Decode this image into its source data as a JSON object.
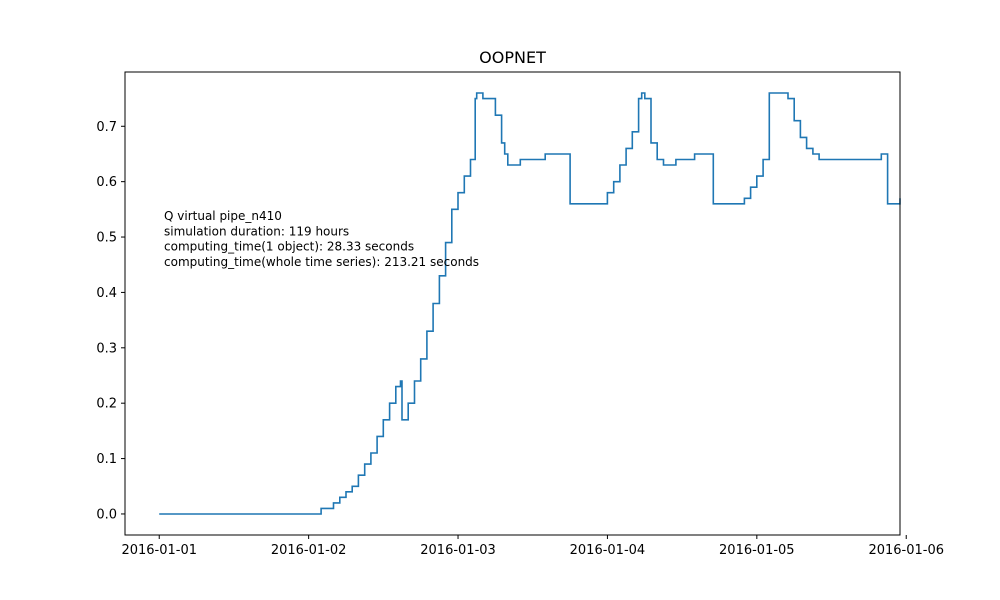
{
  "chart_data": {
    "type": "line",
    "title": "OOPNET",
    "xlabel": "",
    "ylabel": "",
    "x_is_datetime": true,
    "xlim": [
      "2016-01-00T18:30",
      "2016-01-05T23:00"
    ],
    "ylim": [
      -0.038,
      0.798
    ],
    "xticks": [
      "2016-01-01",
      "2016-01-02",
      "2016-01-03",
      "2016-01-04",
      "2016-01-05",
      "2016-01-06"
    ],
    "yticks": [
      0.0,
      0.1,
      0.2,
      0.3,
      0.4,
      0.5,
      0.6,
      0.7
    ],
    "ytick_labels": [
      "0.0",
      "0.1",
      "0.2",
      "0.3",
      "0.4",
      "0.5",
      "0.6",
      "0.7"
    ],
    "grid": false,
    "legend": "none",
    "line_color": "#1f77b4",
    "step": true,
    "annotations": [
      "Q virtual pipe_n410",
      "simulation duration:  119 hours",
      "computing_time(1 object):  28.33 seconds",
      "computing_time(whole time series):  213.21 seconds"
    ],
    "series": [
      {
        "x": [
          "2016-01-01T00:00",
          "2016-01-02T02:00",
          "2016-01-02T04:00",
          "2016-01-02T05:00",
          "2016-01-02T06:00",
          "2016-01-02T07:00",
          "2016-01-02T08:00",
          "2016-01-02T09:00",
          "2016-01-02T10:00",
          "2016-01-02T11:00",
          "2016-01-02T12:00",
          "2016-01-02T13:00",
          "2016-01-02T14:00",
          "2016-01-02T14:45",
          "2016-01-02T15:00",
          "2016-01-02T16:00",
          "2016-01-02T17:00",
          "2016-01-02T18:00",
          "2016-01-02T19:00",
          "2016-01-02T20:00",
          "2016-01-02T21:00",
          "2016-01-02T22:00",
          "2016-01-02T23:00",
          "2016-01-03T00:00",
          "2016-01-03T01:00",
          "2016-01-03T02:00",
          "2016-01-03T02:45",
          "2016-01-03T03:00",
          "2016-01-03T04:00",
          "2016-01-03T05:00",
          "2016-01-03T06:00",
          "2016-01-03T07:00",
          "2016-01-03T07:30",
          "2016-01-03T08:00",
          "2016-01-03T09:00",
          "2016-01-03T10:00",
          "2016-01-03T11:00",
          "2016-01-03T14:00",
          "2016-01-03T18:00",
          "2016-01-03T23:00",
          "2016-01-04T00:00",
          "2016-01-04T01:00",
          "2016-01-04T02:00",
          "2016-01-04T03:00",
          "2016-01-04T04:00",
          "2016-01-04T05:00",
          "2016-01-04T05:30",
          "2016-01-04T06:00",
          "2016-01-04T07:00",
          "2016-01-04T08:00",
          "2016-01-04T09:00",
          "2016-01-04T10:00",
          "2016-01-04T11:00",
          "2016-01-04T14:00",
          "2016-01-04T17:00",
          "2016-01-04T21:00",
          "2016-01-04T22:00",
          "2016-01-04T23:00",
          "2016-01-05T00:00",
          "2016-01-05T01:00",
          "2016-01-05T02:00",
          "2016-01-05T03:00",
          "2016-01-05T04:00",
          "2016-01-05T05:00",
          "2016-01-05T06:00",
          "2016-01-05T07:00",
          "2016-01-05T08:00",
          "2016-01-05T09:00",
          "2016-01-05T10:00",
          "2016-01-05T11:00",
          "2016-01-05T20:00",
          "2016-01-05T21:00",
          "2016-01-05T23:00"
        ],
        "y": [
          0.0,
          0.01,
          0.02,
          0.03,
          0.04,
          0.05,
          0.07,
          0.09,
          0.11,
          0.14,
          0.17,
          0.2,
          0.23,
          0.24,
          0.17,
          0.2,
          0.24,
          0.28,
          0.33,
          0.38,
          0.43,
          0.49,
          0.55,
          0.58,
          0.61,
          0.64,
          0.75,
          0.76,
          0.75,
          0.75,
          0.72,
          0.67,
          0.65,
          0.63,
          0.63,
          0.64,
          0.64,
          0.65,
          0.56,
          0.56,
          0.58,
          0.6,
          0.63,
          0.66,
          0.69,
          0.75,
          0.76,
          0.75,
          0.67,
          0.64,
          0.63,
          0.63,
          0.64,
          0.65,
          0.56,
          0.56,
          0.57,
          0.59,
          0.61,
          0.64,
          0.76,
          0.76,
          0.76,
          0.75,
          0.71,
          0.68,
          0.66,
          0.65,
          0.64,
          0.64,
          0.65,
          0.56,
          0.57
        ]
      }
    ]
  }
}
